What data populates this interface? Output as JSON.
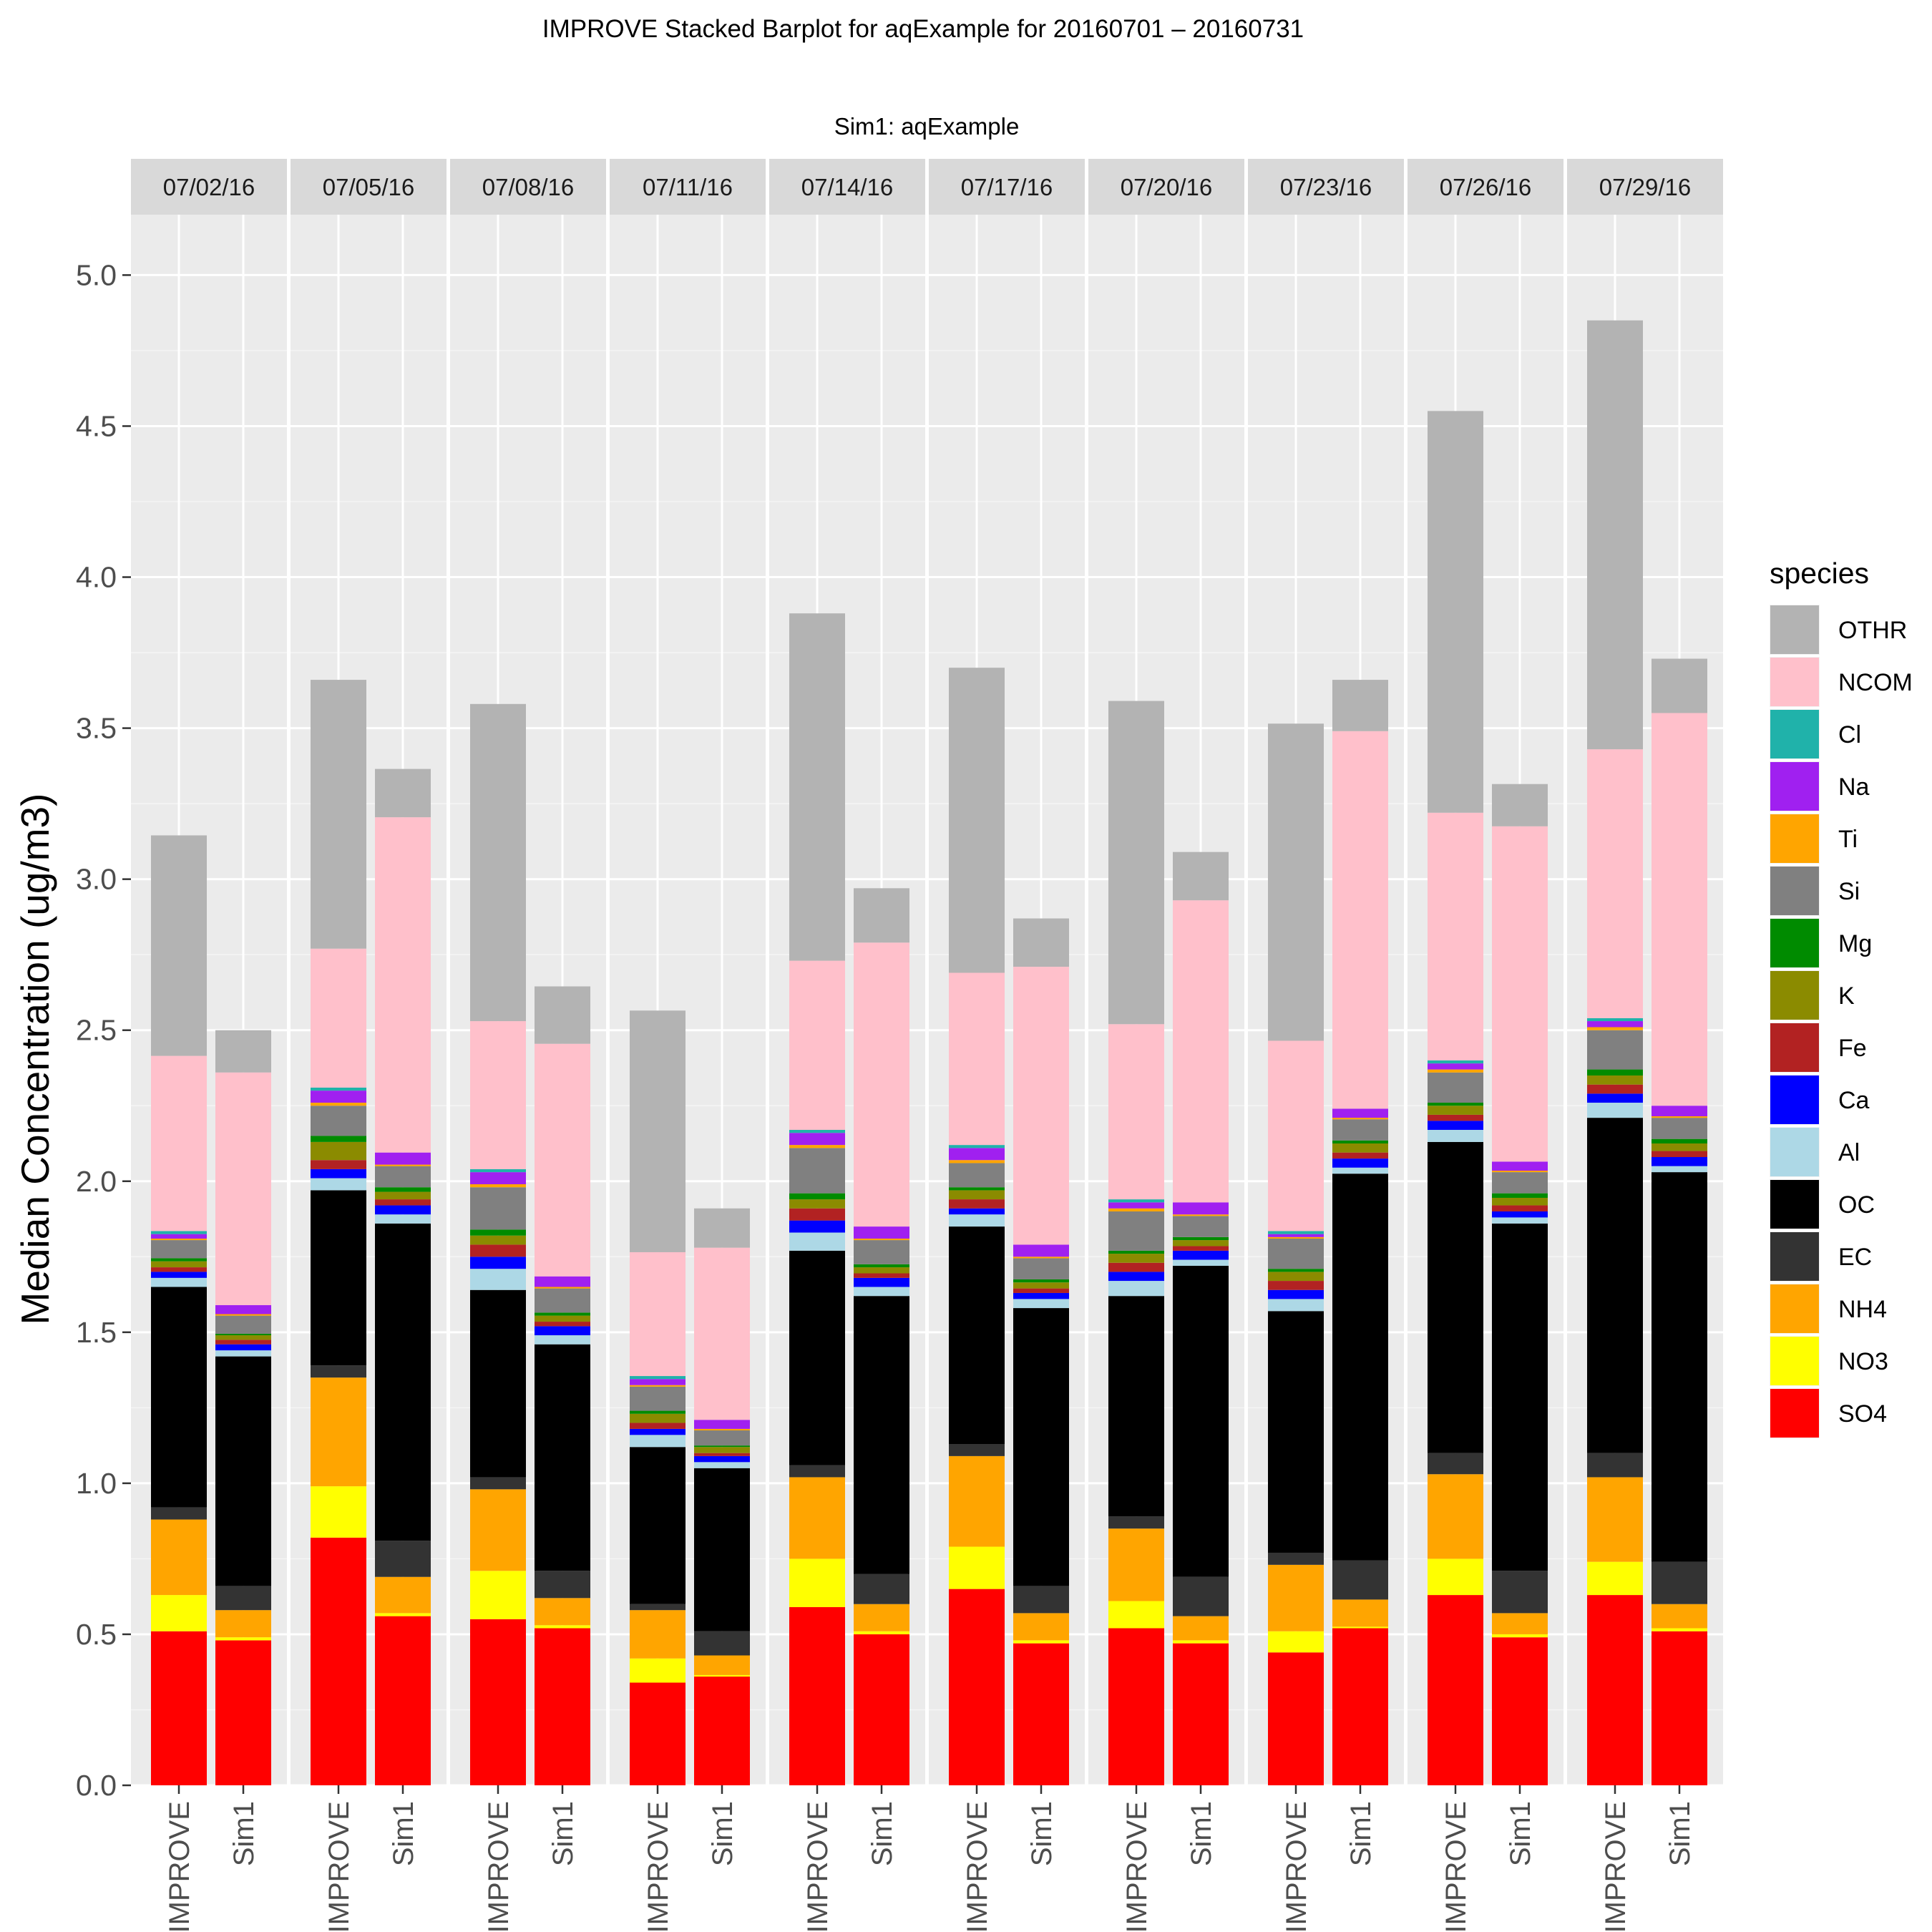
{
  "chart_data": {
    "type": "bar",
    "stacked": true,
    "title": "IMPROVE Stacked Barplot for aqExample for 20160701 – 20160731",
    "subtitle": "Sim1: aqExample",
    "ylabel": "Median Concentration (ug/m3)",
    "xlabel": "",
    "ylim": [
      0,
      5.2
    ],
    "yticks": [
      "0.0",
      "0.5",
      "1.0",
      "1.5",
      "2.0",
      "2.5",
      "3.0",
      "3.5",
      "4.0",
      "4.5",
      "5.0"
    ],
    "grid": true,
    "legend_title": "species",
    "legend_position": "right",
    "species": [
      {
        "name": "SO4",
        "color": "#FF0000"
      },
      {
        "name": "NO3",
        "color": "#FFFF00"
      },
      {
        "name": "NH4",
        "color": "#FFA500"
      },
      {
        "name": "EC",
        "color": "#333333"
      },
      {
        "name": "OC",
        "color": "#000000"
      },
      {
        "name": "Al",
        "color": "#ADD8E6"
      },
      {
        "name": "Ca",
        "color": "#0000FF"
      },
      {
        "name": "Fe",
        "color": "#B22222"
      },
      {
        "name": "K",
        "color": "#8B8B00"
      },
      {
        "name": "Mg",
        "color": "#008B00"
      },
      {
        "name": "Si",
        "color": "#808080"
      },
      {
        "name": "Ti",
        "color": "#FFA500"
      },
      {
        "name": "Na",
        "color": "#A020F0"
      },
      {
        "name": "Cl",
        "color": "#20B2AA"
      },
      {
        "name": "NCOM",
        "color": "#FFC0CB"
      },
      {
        "name": "OTHR",
        "color": "#B3B3B3"
      }
    ],
    "legend_order": [
      "OTHR",
      "NCOM",
      "Cl",
      "Na",
      "Ti",
      "Si",
      "Mg",
      "K",
      "Fe",
      "Ca",
      "Al",
      "OC",
      "EC",
      "NH4",
      "NO3",
      "SO4"
    ],
    "panels": [
      {
        "label": "07/02/16",
        "bars": [
          {
            "name": "IMPROVE",
            "values": [
              0.51,
              0.12,
              0.25,
              0.04,
              0.73,
              0.03,
              0.02,
              0.015,
              0.02,
              0.01,
              0.06,
              0.005,
              0.015,
              0.01,
              0.58,
              0.73
            ]
          },
          {
            "name": "Sim1",
            "values": [
              0.48,
              0.01,
              0.09,
              0.08,
              0.76,
              0.02,
              0.02,
              0.015,
              0.015,
              0.005,
              0.06,
              0.005,
              0.03,
              0.0,
              0.77,
              0.14
            ]
          }
        ]
      },
      {
        "label": "07/05/16",
        "bars": [
          {
            "name": "IMPROVE",
            "values": [
              0.82,
              0.17,
              0.36,
              0.04,
              0.58,
              0.04,
              0.03,
              0.03,
              0.06,
              0.02,
              0.1,
              0.01,
              0.04,
              0.01,
              0.46,
              0.89
            ]
          },
          {
            "name": "Sim1",
            "values": [
              0.56,
              0.01,
              0.12,
              0.12,
              1.05,
              0.03,
              0.03,
              0.02,
              0.025,
              0.015,
              0.07,
              0.005,
              0.04,
              0.0,
              1.11,
              0.16
            ]
          }
        ]
      },
      {
        "label": "07/08/16",
        "bars": [
          {
            "name": "IMPROVE",
            "values": [
              0.55,
              0.16,
              0.27,
              0.04,
              0.62,
              0.07,
              0.04,
              0.04,
              0.03,
              0.02,
              0.14,
              0.01,
              0.04,
              0.01,
              0.49,
              1.05
            ]
          },
          {
            "name": "Sim1",
            "values": [
              0.52,
              0.01,
              0.09,
              0.09,
              0.75,
              0.03,
              0.03,
              0.015,
              0.02,
              0.01,
              0.08,
              0.005,
              0.035,
              0.0,
              0.77,
              0.19
            ]
          }
        ]
      },
      {
        "label": "07/11/16",
        "bars": [
          {
            "name": "IMPROVE",
            "values": [
              0.34,
              0.08,
              0.16,
              0.02,
              0.52,
              0.04,
              0.02,
              0.02,
              0.03,
              0.01,
              0.08,
              0.005,
              0.02,
              0.01,
              0.41,
              0.8
            ]
          },
          {
            "name": "Sim1",
            "values": [
              0.36,
              0.005,
              0.065,
              0.08,
              0.54,
              0.02,
              0.02,
              0.01,
              0.02,
              0.005,
              0.05,
              0.005,
              0.03,
              0.0,
              0.57,
              0.13
            ]
          }
        ]
      },
      {
        "label": "07/14/16",
        "bars": [
          {
            "name": "IMPROVE",
            "values": [
              0.59,
              0.16,
              0.27,
              0.04,
              0.71,
              0.06,
              0.04,
              0.04,
              0.03,
              0.02,
              0.15,
              0.01,
              0.04,
              0.01,
              0.56,
              1.15
            ]
          },
          {
            "name": "Sim1",
            "values": [
              0.5,
              0.01,
              0.09,
              0.1,
              0.92,
              0.03,
              0.03,
              0.015,
              0.02,
              0.01,
              0.08,
              0.005,
              0.04,
              0.0,
              0.94,
              0.18
            ]
          }
        ]
      },
      {
        "label": "07/17/16",
        "bars": [
          {
            "name": "IMPROVE",
            "values": [
              0.65,
              0.14,
              0.3,
              0.04,
              0.72,
              0.04,
              0.02,
              0.03,
              0.03,
              0.01,
              0.08,
              0.01,
              0.04,
              0.01,
              0.57,
              1.01
            ]
          },
          {
            "name": "Sim1",
            "values": [
              0.47,
              0.01,
              0.09,
              0.09,
              0.92,
              0.03,
              0.02,
              0.015,
              0.02,
              0.01,
              0.07,
              0.005,
              0.04,
              0.0,
              0.92,
              0.16
            ]
          }
        ]
      },
      {
        "label": "07/20/16",
        "bars": [
          {
            "name": "IMPROVE",
            "values": [
              0.52,
              0.09,
              0.24,
              0.04,
              0.73,
              0.05,
              0.03,
              0.03,
              0.03,
              0.01,
              0.13,
              0.01,
              0.02,
              0.01,
              0.58,
              1.07
            ]
          },
          {
            "name": "Sim1",
            "values": [
              0.47,
              0.01,
              0.08,
              0.13,
              1.03,
              0.02,
              0.03,
              0.015,
              0.02,
              0.01,
              0.07,
              0.005,
              0.04,
              0.0,
              1.0,
              0.16
            ]
          }
        ]
      },
      {
        "label": "07/23/16",
        "bars": [
          {
            "name": "IMPROVE",
            "values": [
              0.44,
              0.07,
              0.22,
              0.04,
              0.8,
              0.04,
              0.03,
              0.03,
              0.03,
              0.01,
              0.1,
              0.005,
              0.01,
              0.01,
              0.63,
              1.05
            ]
          },
          {
            "name": "Sim1",
            "values": [
              0.52,
              0.005,
              0.09,
              0.13,
              1.28,
              0.02,
              0.03,
              0.02,
              0.03,
              0.01,
              0.07,
              0.005,
              0.03,
              0.0,
              1.25,
              0.17
            ]
          }
        ]
      },
      {
        "label": "07/26/16",
        "bars": [
          {
            "name": "IMPROVE",
            "values": [
              0.63,
              0.12,
              0.28,
              0.07,
              1.03,
              0.04,
              0.03,
              0.02,
              0.03,
              0.01,
              0.1,
              0.01,
              0.02,
              0.01,
              0.82,
              1.33
            ]
          },
          {
            "name": "Sim1",
            "values": [
              0.49,
              0.01,
              0.07,
              0.14,
              1.15,
              0.02,
              0.02,
              0.02,
              0.025,
              0.015,
              0.07,
              0.005,
              0.03,
              0.0,
              1.11,
              0.14
            ]
          }
        ]
      },
      {
        "label": "07/29/16",
        "bars": [
          {
            "name": "IMPROVE",
            "values": [
              0.63,
              0.11,
              0.28,
              0.08,
              1.11,
              0.05,
              0.03,
              0.03,
              0.03,
              0.02,
              0.13,
              0.01,
              0.02,
              0.01,
              0.89,
              1.42
            ]
          },
          {
            "name": "Sim1",
            "values": [
              0.51,
              0.01,
              0.08,
              0.14,
              1.29,
              0.02,
              0.03,
              0.02,
              0.025,
              0.015,
              0.07,
              0.005,
              0.035,
              0.0,
              1.3,
              0.18
            ]
          }
        ]
      }
    ]
  }
}
